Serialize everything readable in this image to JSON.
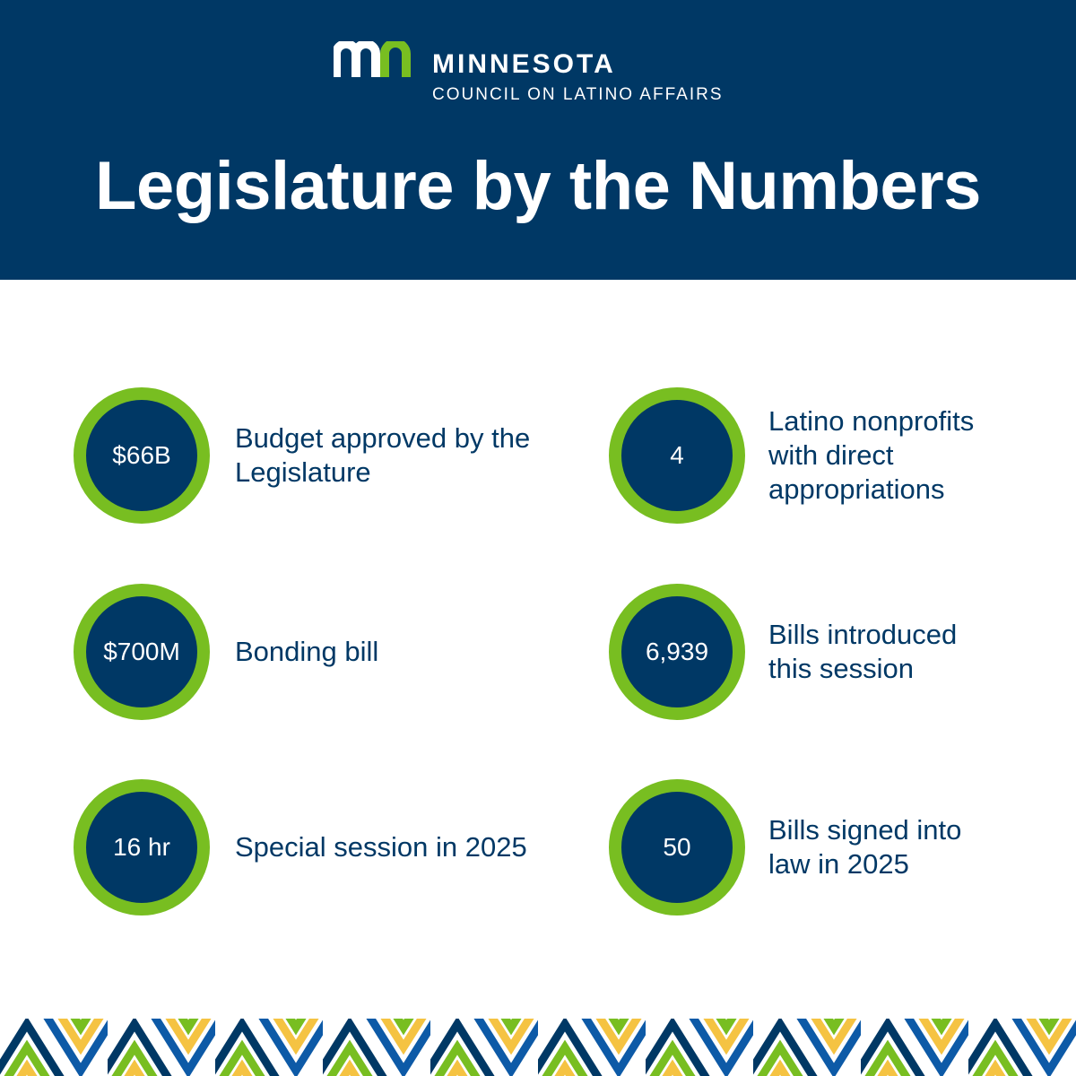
{
  "header": {
    "logo_org": "MINNESOTA",
    "logo_sub": "COUNCIL ON LATINO AFFAIRS",
    "title": "Legislature by the Numbers"
  },
  "stats": [
    {
      "value": "$66B",
      "label": "Budget approved by the Legislature"
    },
    {
      "value": "4",
      "label": "Latino nonprofits with direct appropriations"
    },
    {
      "value": "$700M",
      "label": "Bonding bill"
    },
    {
      "value": "6,939",
      "label": "Bills introduced this session"
    },
    {
      "value": "16 hr",
      "label": "Special session in 2025"
    },
    {
      "value": "50",
      "label": "Bills signed into law in 2025"
    }
  ],
  "colors": {
    "navy": "#003865",
    "green": "#78be21",
    "yellow": "#f5c342",
    "blue": "#0d5aa7"
  },
  "icons": {
    "logo": "mn-logo-icon",
    "footer": "chevron-pattern"
  }
}
